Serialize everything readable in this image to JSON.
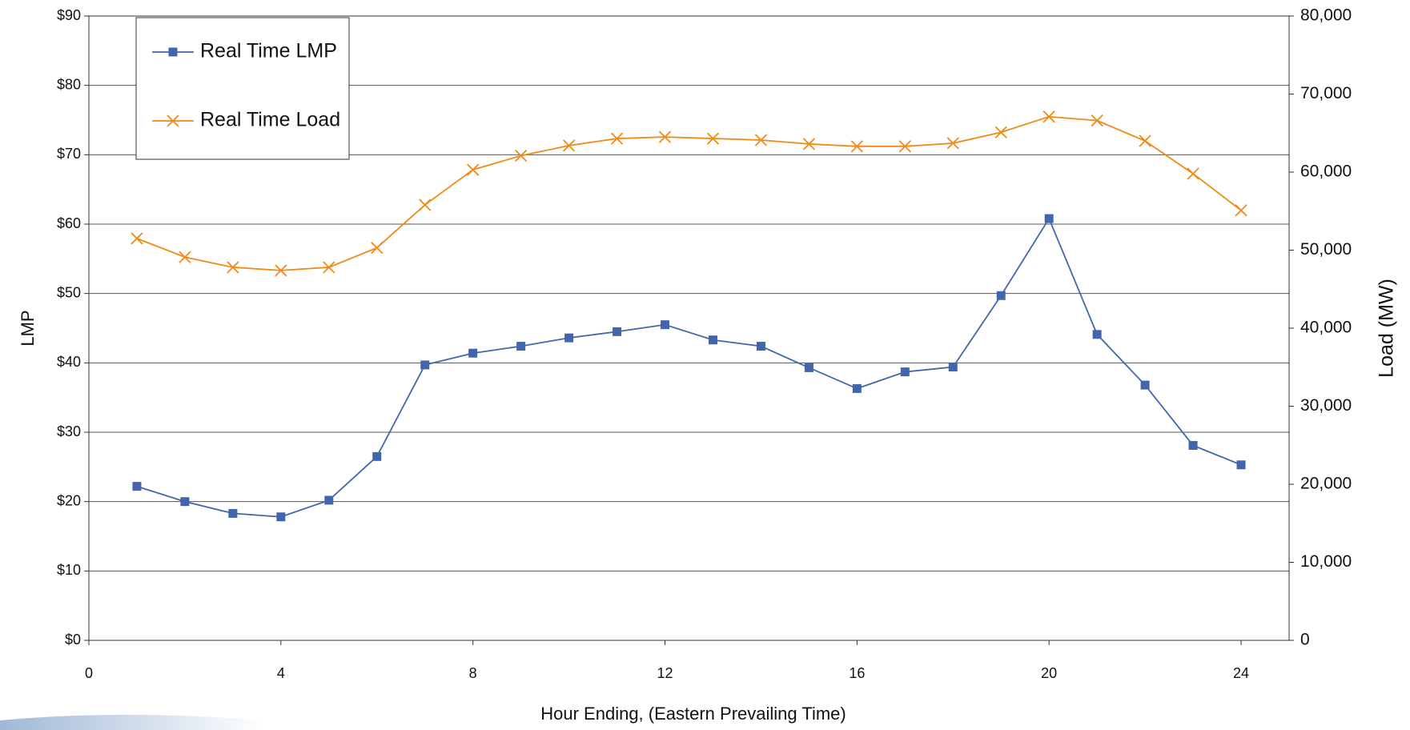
{
  "chart_data": {
    "type": "line",
    "x_label": "Hour Ending, (Eastern Prevailing Time)",
    "y_label": "LMP",
    "y2_label": "Load (MW)",
    "x": [
      1,
      2,
      3,
      4,
      5,
      6,
      7,
      8,
      9,
      10,
      11,
      12,
      13,
      14,
      15,
      16,
      17,
      18,
      19,
      20,
      21,
      22,
      23,
      24
    ],
    "xlim": [
      0,
      25
    ],
    "xticks": [
      0,
      4,
      8,
      12,
      16,
      20,
      24
    ],
    "ylim": [
      0,
      90
    ],
    "yticks": [
      {
        "value": 0,
        "label": "$0"
      },
      {
        "value": 10,
        "label": "$10"
      },
      {
        "value": 20,
        "label": "$20"
      },
      {
        "value": 30,
        "label": "$30"
      },
      {
        "value": 40,
        "label": "$40"
      },
      {
        "value": 50,
        "label": "$50"
      },
      {
        "value": 60,
        "label": "$60"
      },
      {
        "value": 70,
        "label": "$70"
      },
      {
        "value": 80,
        "label": "$80"
      },
      {
        "value": 90,
        "label": "$90"
      }
    ],
    "y2lim": [
      0,
      80000
    ],
    "y2ticks": [
      0,
      {
        "value": 10000,
        "label": "10,000"
      },
      {
        "value": 20000,
        "label": "20,000"
      },
      {
        "value": 30000,
        "label": "30,000"
      },
      {
        "value": 40000,
        "label": "40,000"
      },
      {
        "value": 50000,
        "label": "50,000"
      },
      {
        "value": 60000,
        "label": "60,000"
      },
      {
        "value": 70000,
        "label": "70,000"
      },
      {
        "value": 80000,
        "label": "80,000"
      }
    ],
    "grid": true,
    "legend": "upper left",
    "series": [
      {
        "name": "Real Time LMP",
        "color": "#4166ad",
        "marker": "square",
        "values": [
          22.2,
          20.0,
          18.3,
          17.8,
          20.2,
          26.5,
          39.7,
          41.4,
          42.4,
          43.6,
          44.5,
          45.5,
          43.3,
          42.4,
          39.3,
          36.3,
          38.7,
          39.4,
          49.7,
          60.8,
          44.1,
          36.8,
          28.1,
          25.3
        ]
      },
      {
        "name": "Real Time Load",
        "color": "#ef8a17",
        "marker": "x",
        "axis": "y2",
        "values": [
          51500,
          49100,
          47800,
          47400,
          47800,
          50300,
          55800,
          60300,
          62100,
          63400,
          64300,
          64500,
          64300,
          64100,
          63600,
          63300,
          63300,
          63700,
          65100,
          67100,
          66600,
          64000,
          59800,
          55100
        ]
      }
    ]
  }
}
